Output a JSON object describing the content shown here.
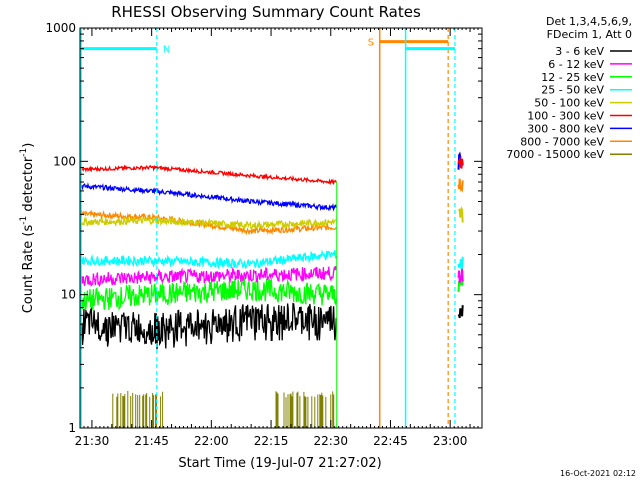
{
  "chart_data": {
    "type": "line",
    "title": "RHESSI Observing Summary Count Rates",
    "xlabel": "Start Time (19-Jul-07 21:27:02)",
    "ylabel_main": "Count Rate (s",
    "ylabel_sup1": "-1",
    "ylabel_mid": " detector",
    "ylabel_sup2": "-1",
    "ylabel_end": ")",
    "yscale": "log",
    "ylim": [
      1,
      1000
    ],
    "xlim_minutes": [
      87,
      188
    ],
    "x_ticks": [
      {
        "label": "21:30",
        "min": 90
      },
      {
        "label": "21:45",
        "min": 105
      },
      {
        "label": "22:00",
        "min": 120
      },
      {
        "label": "22:15",
        "min": 135
      },
      {
        "label": "22:30",
        "min": 150
      },
      {
        "label": "22:45",
        "min": 165
      },
      {
        "label": "23:00",
        "min": 180
      }
    ],
    "y_ticks": [
      {
        "label": "1",
        "value": 1
      },
      {
        "label": "10",
        "value": 10
      },
      {
        "label": "100",
        "value": 100
      },
      {
        "label": "1000",
        "value": 1000
      }
    ],
    "legend": {
      "header": [
        "Det 1,3,4,5,6,9,",
        "FDecim 1, Att 0"
      ],
      "placement": "right"
    },
    "series": [
      {
        "name": "3 - 6 keV",
        "color": "#000000",
        "values_start": [
          6,
          5.5,
          6.5,
          6.5
        ],
        "values_end": 7.5
      },
      {
        "name": "6 - 12 keV",
        "color": "#ff00ff",
        "values_start": [
          13,
          13.5,
          14,
          14.5
        ],
        "values_end": 14
      },
      {
        "name": "12 - 25 keV",
        "color": "#00ff00",
        "values_start": [
          9,
          10,
          11,
          10
        ],
        "values_end": 12
      },
      {
        "name": "25 - 50 keV",
        "color": "#00ffff",
        "values_start": [
          18,
          18,
          17,
          20
        ],
        "values_end": 17
      },
      {
        "name": "50 - 100 keV",
        "color": "#cccc00",
        "values_start": [
          35,
          36,
          33,
          35
        ],
        "values_end": 40
      },
      {
        "name": "100 - 300 keV",
        "color": "#ff0000",
        "values_start": [
          87,
          90,
          78,
          70
        ],
        "values_end": 100
      },
      {
        "name": "300 - 800 keV",
        "color": "#0000ff",
        "values_start": [
          65,
          60,
          50,
          45
        ],
        "values_end": 100
      },
      {
        "name": "800 - 7000 keV",
        "color": "#ff8800",
        "values_start": [
          40,
          38,
          30,
          32
        ],
        "values_end": 70
      },
      {
        "name": "7000 - 15000 keV",
        "color": "#808000",
        "values_start": [
          1.7,
          1.7,
          1.0,
          1.7
        ],
        "values_end": null
      }
    ],
    "annotations": [
      {
        "label": "N",
        "color": "#00ffff",
        "type": "night",
        "start_min": 87,
        "end_min": 106.3
      },
      {
        "label": "S",
        "color": "#ff8800",
        "type": "saa",
        "start_min": 162.3,
        "end_min": 179.5
      },
      {
        "label": "",
        "color": "#00ffff",
        "type": "night",
        "start_min": 168.8,
        "end_min": 181.2
      }
    ],
    "stamp": "16-Oct-2021 02:12"
  }
}
